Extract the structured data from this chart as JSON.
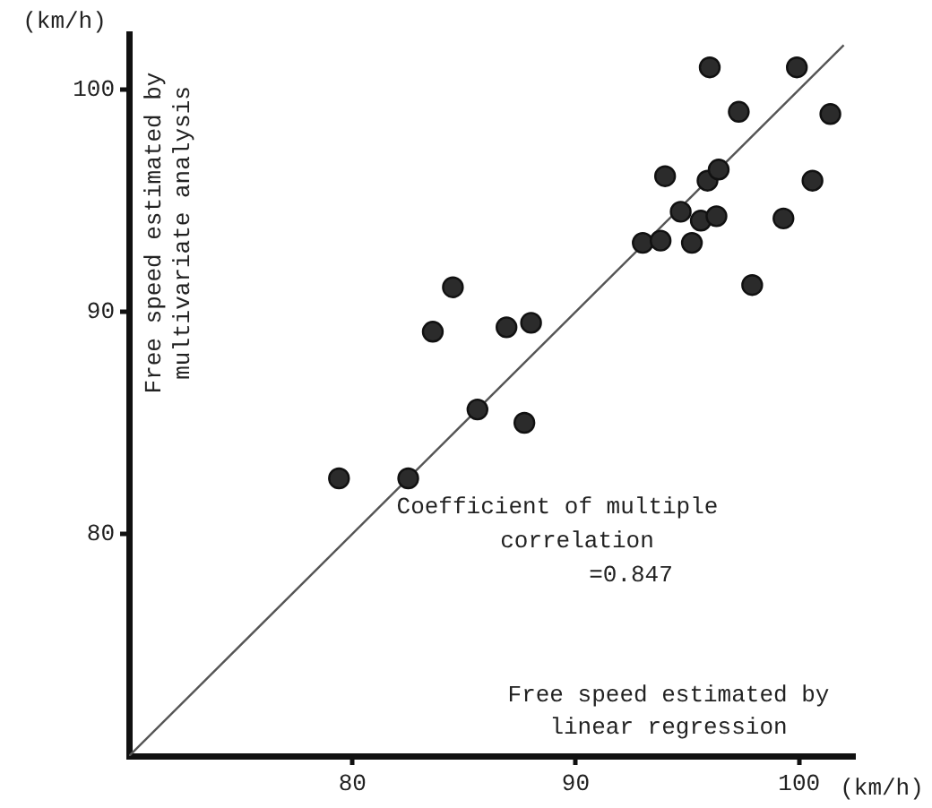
{
  "chart_data": {
    "type": "scatter",
    "xlabel": "Free speed estimated by\nlinear regression",
    "ylabel": "Free speed estimated by\nmultivariate analysis",
    "annotations": [
      "Coefficient of multiple\ncorrelation\n=0.847",
      "(km/h)",
      "(km/h)"
    ],
    "xlim": [
      70,
      102.5
    ],
    "ylim": [
      70,
      102.5
    ],
    "xticks": [
      80,
      90,
      100
    ],
    "yticks": [
      80,
      90,
      100
    ],
    "grid": false,
    "marker": "circle",
    "series": [
      {
        "color": "#2b2b2b",
        "x": [
          79.4,
          82.5,
          96.0,
          99.9,
          97.3,
          101.4,
          94.0,
          95.9,
          96.4,
          100.6,
          94.7,
          95.6,
          96.3,
          99.3,
          93.0,
          93.8,
          95.2,
          97.9,
          84.5,
          83.6,
          86.9,
          88.0,
          85.6,
          87.7
        ],
        "values": [
          82.5,
          82.5,
          101.0,
          101.0,
          99.0,
          98.9,
          96.1,
          95.9,
          96.4,
          95.9,
          94.5,
          94.1,
          94.3,
          94.2,
          93.1,
          93.2,
          93.1,
          91.2,
          91.1,
          89.1,
          89.3,
          89.5,
          85.6,
          85.0
        ]
      },
      {
        "type": "line",
        "color": "#555555",
        "marker": "none",
        "line_style": "solid",
        "x": [
          70,
          102
        ],
        "values": [
          70,
          102
        ]
      }
    ]
  }
}
